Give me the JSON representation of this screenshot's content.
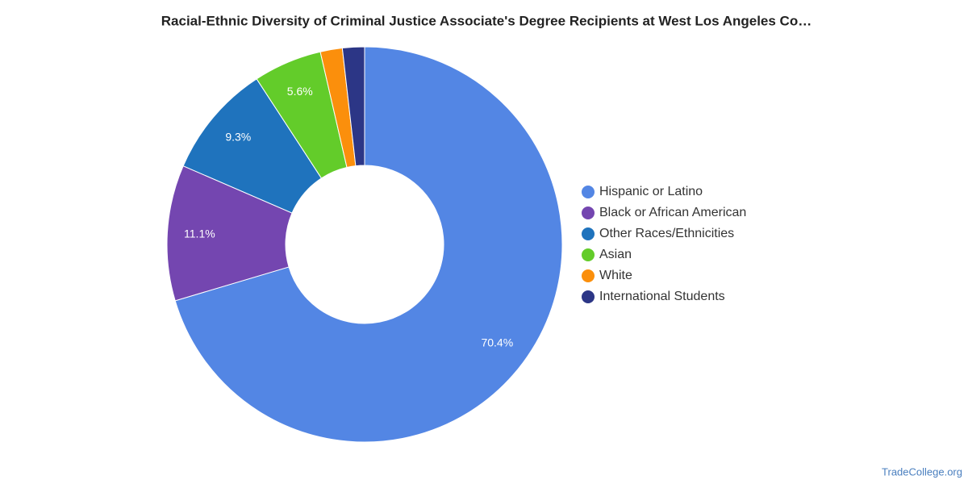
{
  "chart_data": {
    "type": "donut",
    "title": "Racial-Ethnic Diversity of Criminal Justice Associate's Degree Recipients at West Los Angeles Co…",
    "categories": [
      "Hispanic or Latino",
      "Black or African American",
      "Other Races/Ethnicities",
      "Asian",
      "White",
      "International Students"
    ],
    "values": [
      70.4,
      11.1,
      9.3,
      5.6,
      1.8,
      1.8
    ],
    "value_labels": [
      "70.4%",
      "11.1%",
      "9.3%",
      "5.6%",
      null,
      null
    ],
    "colors": [
      "#5386e4",
      "#7446b0",
      "#1f73bd",
      "#63cc2a",
      "#fb8f0c",
      "#2c3686"
    ],
    "legend": "right",
    "source": "TradeCollege.org"
  }
}
